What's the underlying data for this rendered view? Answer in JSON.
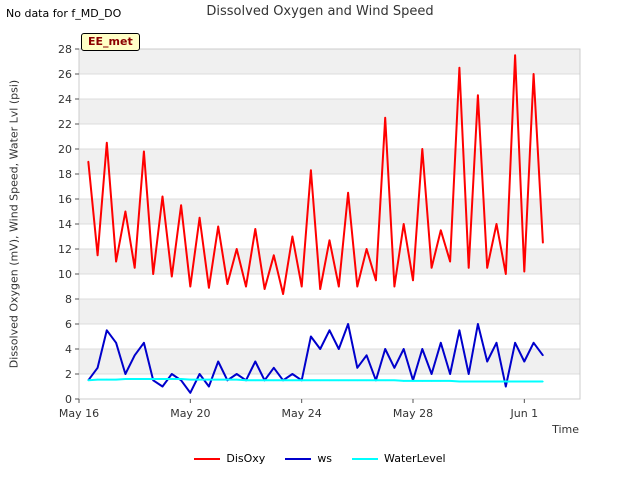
{
  "header": {
    "nodata_text": "No data for f_MD_DO",
    "title": "Dissolved Oxygen and Wind Speed"
  },
  "badge": {
    "text": "EE_met"
  },
  "chart_data": {
    "type": "line",
    "title": "Dissolved Oxygen and Wind Speed",
    "xlabel": "Time",
    "ylabel": "Dissolved Oxygen (mV), Wind Speed, Water Lvl (psi)",
    "ylim": [
      0,
      28
    ],
    "xlim": [
      "2024-05-16",
      "2024-06-03"
    ],
    "x_tick_labels": [
      "May 16",
      "May 20",
      "May 24",
      "May 28",
      "Jun 1"
    ],
    "x_ticks": [
      "2024-05-16",
      "2024-05-20",
      "2024-05-24",
      "2024-05-28",
      "2024-06-01"
    ],
    "y_ticks": [
      0,
      2,
      4,
      6,
      8,
      10,
      12,
      14,
      16,
      18,
      20,
      22,
      24,
      26,
      28
    ],
    "grid": true,
    "legend_position": "bottom",
    "x": [
      "2024-05-16 08:00",
      "2024-05-16 16:00",
      "2024-05-17 00:00",
      "2024-05-17 08:00",
      "2024-05-17 16:00",
      "2024-05-18 00:00",
      "2024-05-18 08:00",
      "2024-05-18 16:00",
      "2024-05-19 00:00",
      "2024-05-19 08:00",
      "2024-05-19 16:00",
      "2024-05-20 00:00",
      "2024-05-20 08:00",
      "2024-05-20 16:00",
      "2024-05-21 00:00",
      "2024-05-21 08:00",
      "2024-05-21 16:00",
      "2024-05-22 00:00",
      "2024-05-22 08:00",
      "2024-05-22 16:00",
      "2024-05-23 00:00",
      "2024-05-23 08:00",
      "2024-05-23 16:00",
      "2024-05-24 00:00",
      "2024-05-24 08:00",
      "2024-05-24 16:00",
      "2024-05-25 00:00",
      "2024-05-25 08:00",
      "2024-05-25 16:00",
      "2024-05-26 00:00",
      "2024-05-26 08:00",
      "2024-05-26 16:00",
      "2024-05-27 00:00",
      "2024-05-27 08:00",
      "2024-05-27 16:00",
      "2024-05-28 00:00",
      "2024-05-28 08:00",
      "2024-05-28 16:00",
      "2024-05-29 00:00",
      "2024-05-29 08:00",
      "2024-05-29 16:00",
      "2024-05-30 00:00",
      "2024-05-30 08:00",
      "2024-05-30 16:00",
      "2024-05-31 00:00",
      "2024-05-31 08:00",
      "2024-05-31 16:00",
      "2024-06-01 00:00",
      "2024-06-01 08:00",
      "2024-06-01 16:00"
    ],
    "series": [
      {
        "name": "DisOxy",
        "color": "#ff0000",
        "values": [
          19.0,
          11.5,
          20.5,
          11.0,
          15.0,
          10.5,
          19.8,
          10.0,
          16.2,
          9.8,
          15.5,
          9.0,
          14.5,
          8.9,
          13.8,
          9.2,
          12.0,
          9.0,
          13.6,
          8.8,
          11.5,
          8.4,
          13.0,
          9.0,
          18.3,
          8.8,
          12.7,
          9.0,
          16.5,
          9.0,
          12.0,
          9.5,
          22.5,
          9.0,
          14.0,
          9.5,
          20.0,
          10.5,
          13.5,
          11.0,
          26.5,
          10.5,
          24.3,
          10.5,
          14.0,
          10.0,
          27.5,
          10.2,
          26.0,
          12.5
        ]
      },
      {
        "name": "ws",
        "color": "#0000cc",
        "values": [
          1.5,
          2.5,
          5.5,
          4.5,
          2.0,
          3.5,
          4.5,
          1.5,
          1.0,
          2.0,
          1.5,
          0.5,
          2.0,
          1.0,
          3.0,
          1.5,
          2.0,
          1.5,
          3.0,
          1.5,
          2.5,
          1.5,
          2.0,
          1.5,
          5.0,
          4.0,
          5.5,
          4.0,
          6.0,
          2.5,
          3.5,
          1.5,
          4.0,
          2.5,
          4.0,
          1.5,
          4.0,
          2.0,
          4.5,
          2.0,
          5.5,
          2.0,
          6.0,
          3.0,
          4.5,
          1.0,
          4.5,
          3.0,
          4.5,
          3.5
        ]
      },
      {
        "name": "WaterLevel",
        "color": "#00ffff",
        "values": [
          1.5,
          1.55,
          1.55,
          1.55,
          1.6,
          1.6,
          1.6,
          1.6,
          1.6,
          1.6,
          1.6,
          1.55,
          1.55,
          1.55,
          1.55,
          1.55,
          1.55,
          1.5,
          1.5,
          1.5,
          1.5,
          1.5,
          1.5,
          1.5,
          1.5,
          1.5,
          1.5,
          1.5,
          1.5,
          1.5,
          1.5,
          1.5,
          1.5,
          1.5,
          1.45,
          1.45,
          1.45,
          1.45,
          1.45,
          1.45,
          1.4,
          1.4,
          1.4,
          1.4,
          1.4,
          1.4,
          1.4,
          1.4,
          1.4,
          1.4
        ]
      }
    ]
  }
}
